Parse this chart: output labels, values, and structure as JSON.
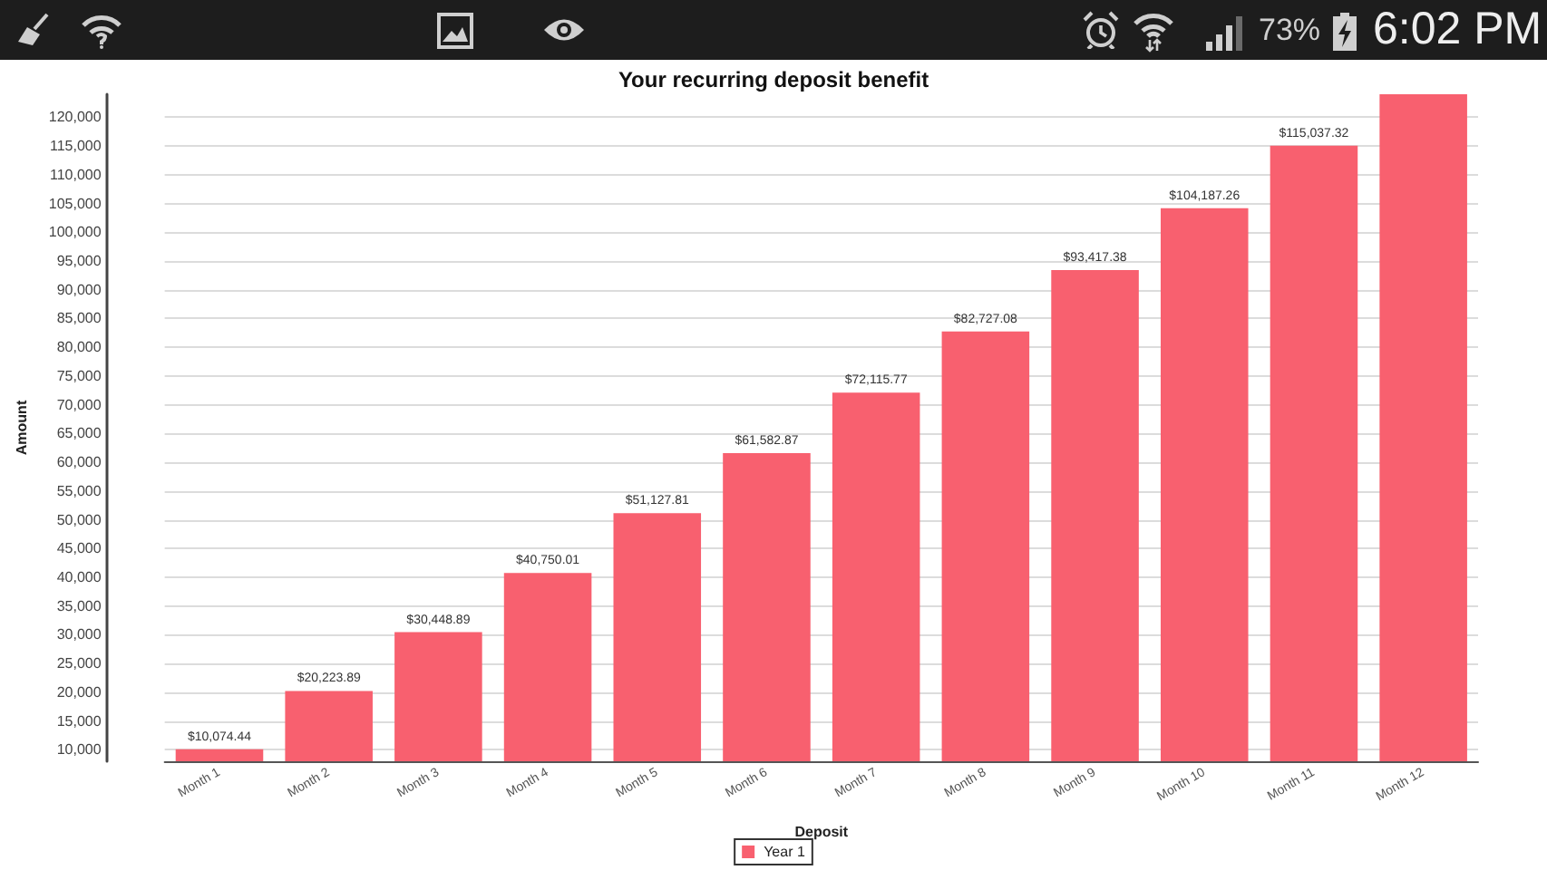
{
  "chart_data": {
    "type": "bar",
    "title": "Your recurring deposit benefit",
    "xlabel": "Deposit",
    "ylabel": "Amount",
    "categories": [
      "Month 1",
      "Month 2",
      "Month 3",
      "Month 4",
      "Month 5",
      "Month 6",
      "Month 7",
      "Month 8",
      "Month 9",
      "Month 10",
      "Month 11",
      "Month 12"
    ],
    "series": [
      {
        "name": "Year 1",
        "color": "#f8606f",
        "values": [
          10074.44,
          20223.89,
          30448.89,
          40750.01,
          51127.81,
          61582.87,
          72115.77,
          82727.08,
          93417.38,
          104187.26,
          115037.32,
          124000
        ],
        "value_labels": [
          "$10,074.44",
          "$20,223.89",
          "$30,448.89",
          "$40,750.01",
          "$51,127.81",
          "$61,582.87",
          "$72,115.77",
          "$82,727.08",
          "$93,417.38",
          "$104,187.26",
          "$115,037.32",
          null
        ]
      }
    ],
    "ylim": [
      8000,
      124000
    ],
    "yticks": [
      {
        "value": 10000,
        "label": "10,000"
      },
      {
        "value": 15000,
        "label": "15,000"
      },
      {
        "value": 20000,
        "label": "20,000"
      },
      {
        "value": 25000,
        "label": "25,000"
      },
      {
        "value": 30000,
        "label": "30,000"
      },
      {
        "value": 35000,
        "label": "35,000"
      },
      {
        "value": 40000,
        "label": "40,000"
      },
      {
        "value": 45000,
        "label": "45,000"
      },
      {
        "value": 50000,
        "label": "50,000"
      },
      {
        "value": 55000,
        "label": "55,000"
      },
      {
        "value": 60000,
        "label": "60,000"
      },
      {
        "value": 65000,
        "label": "65,000"
      },
      {
        "value": 70000,
        "label": "70,000"
      },
      {
        "value": 75000,
        "label": "75,000"
      },
      {
        "value": 80000,
        "label": "80,000"
      },
      {
        "value": 85000,
        "label": "85,000"
      },
      {
        "value": 90000,
        "label": "90,000"
      },
      {
        "value": 95000,
        "label": "95,000"
      },
      {
        "value": 100000,
        "label": "100,000"
      },
      {
        "value": 105000,
        "label": "105,000"
      },
      {
        "value": 110000,
        "label": "110,000"
      },
      {
        "value": 115000,
        "label": "115,000"
      },
      {
        "value": 120000,
        "label": "120,000"
      }
    ],
    "grid": "y",
    "legend": "bottom",
    "annotations": [
      "73%",
      "6:02 PM"
    ]
  }
}
